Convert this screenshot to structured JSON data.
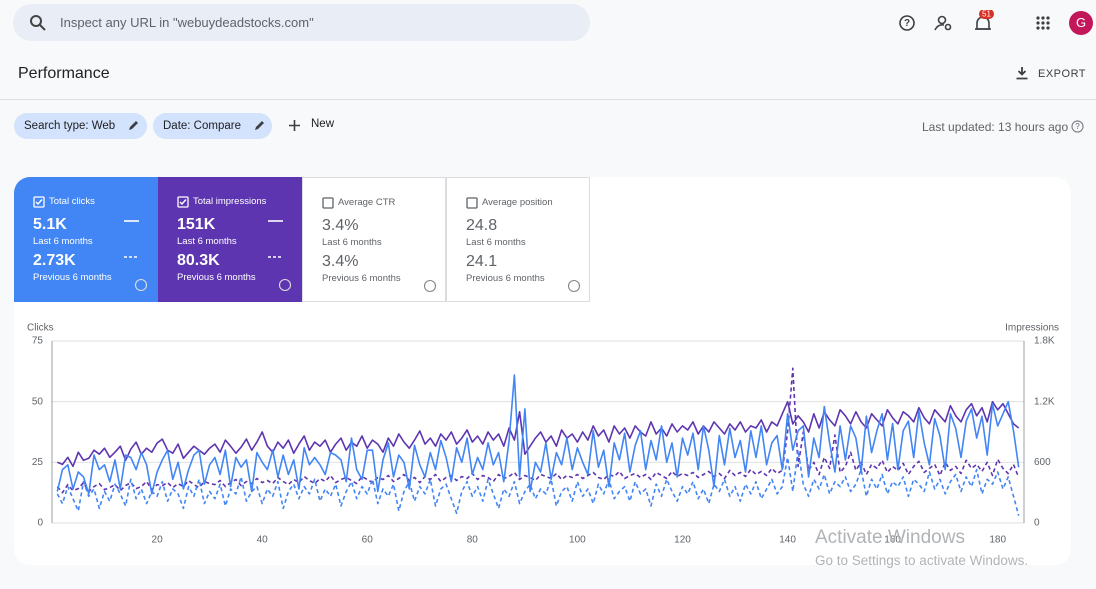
{
  "search": {
    "placeholder": "Inspect any URL in \"webuydeadstocks.com\""
  },
  "header": {
    "notification_count": 51,
    "avatar": "G"
  },
  "title": "Performance",
  "export": "EXPORT",
  "filters": [
    "Search type: Web",
    "Date: Compare",
    "New"
  ],
  "last_updated": "Last updated: 13 hours ago",
  "metrics": [
    {
      "label": "Total clicks",
      "current": "5.1K",
      "current_period": "Last 6 months",
      "previous": "2.73K",
      "previous_period": "Previous 6 months",
      "selected": true,
      "color": "#4285f4"
    },
    {
      "label": "Total impressions",
      "current": "151K",
      "current_period": "Last 6 months",
      "previous": "80.3K",
      "previous_period": "Previous 6 months",
      "selected": true,
      "color": "#5e35b1"
    },
    {
      "label": "Average CTR",
      "current": "3.4%",
      "current_period": "Last 6 months",
      "previous": "3.4%",
      "previous_period": "Previous 6 months",
      "selected": false,
      "color": "#00897b"
    },
    {
      "label": "Average position",
      "current": "24.8",
      "current_period": "Last 6 months",
      "previous": "24.1",
      "previous_period": "Previous 6 months",
      "selected": false,
      "color": "#e8710a"
    }
  ],
  "chart_data": {
    "type": "line",
    "ylabel": "Clicks",
    "y2label": "Impressions",
    "x": [
      1,
      2,
      3,
      4,
      5,
      6,
      7,
      8,
      9,
      10,
      11,
      12,
      13,
      14,
      15,
      16,
      17,
      18,
      19,
      20,
      21,
      22,
      23,
      24,
      25,
      26,
      27,
      28,
      29,
      30,
      31,
      32,
      33,
      34,
      35,
      36,
      37,
      38,
      39,
      40,
      41,
      42,
      43,
      44,
      45,
      46,
      47,
      48,
      49,
      50,
      51,
      52,
      53,
      54,
      55,
      56,
      57,
      58,
      59,
      60,
      61,
      62,
      63,
      64,
      65,
      66,
      67,
      68,
      69,
      70,
      71,
      72,
      73,
      74,
      75,
      76,
      77,
      78,
      79,
      80,
      81,
      82,
      83,
      84,
      85,
      86,
      87,
      88,
      89,
      90,
      91,
      92,
      93,
      94,
      95,
      96,
      97,
      98,
      99,
      100,
      101,
      102,
      103,
      104,
      105,
      106,
      107,
      108,
      109,
      110,
      111,
      112,
      113,
      114,
      115,
      116,
      117,
      118,
      119,
      120,
      121,
      122,
      123,
      124,
      125,
      126,
      127,
      128,
      129,
      130,
      131,
      132,
      133,
      134,
      135,
      136,
      137,
      138,
      139,
      140,
      141,
      142,
      143,
      144,
      145,
      146,
      147,
      148,
      149,
      150,
      151,
      152,
      153,
      154,
      155,
      156,
      157,
      158,
      159,
      160,
      161,
      162,
      163,
      164,
      165,
      166,
      167,
      168,
      169,
      170,
      171,
      172,
      173,
      174,
      175,
      176,
      177,
      178,
      179,
      180,
      181,
      182,
      183,
      184
    ],
    "xlim": [
      0,
      185
    ],
    "xticks": [
      20,
      40,
      60,
      80,
      100,
      120,
      140,
      160,
      180
    ],
    "ylim": [
      0,
      75
    ],
    "yticks": [
      0,
      25,
      50,
      75
    ],
    "y2lim": [
      0,
      1800
    ],
    "y2ticks": [
      0,
      600,
      {
        "value": 1200,
        "label": "1.2K"
      },
      {
        "value": 1800,
        "label": "1.8K"
      }
    ],
    "grid": true,
    "series": [
      {
        "color": "#5e35b1",
        "dashed": true,
        "axis": "y2",
        "values": [
          360,
          300,
          380,
          320,
          340,
          400,
          310,
          360,
          390,
          330,
          350,
          380,
          320,
          370,
          400,
          340,
          360,
          410,
          330,
          380,
          370,
          400,
          350,
          390,
          360,
          420,
          380,
          350,
          410,
          390,
          380,
          420,
          360,
          400,
          430,
          370,
          410,
          390,
          440,
          400,
          420,
          390,
          450,
          410,
          380,
          430,
          400,
          460,
          420,
          390,
          440,
          410,
          470,
          400,
          430,
          450,
          420,
          390,
          460,
          430,
          400,
          450,
          430,
          470,
          410,
          440,
          480,
          420,
          450,
          400,
          460,
          430,
          480,
          410,
          450,
          470,
          420,
          460,
          440,
          490,
          430,
          470,
          450,
          410,
          480,
          440,
          460,
          500,
          430,
          470,
          450,
          420,
          480,
          460,
          440,
          490,
          430,
          470,
          450,
          480,
          440,
          470,
          500,
          450,
          430,
          480,
          460,
          510,
          440,
          470,
          490,
          450,
          480,
          430,
          500,
          470,
          440,
          510,
          460,
          490,
          470,
          500,
          450,
          480,
          510,
          460,
          490,
          440,
          520,
          470,
          500,
          460,
          530,
          480,
          510,
          470,
          540,
          490,
          520,
          900,
          1530,
          560,
          900,
          520,
          600,
          480,
          650,
          540,
          870,
          500,
          560,
          700,
          520,
          600,
          480,
          580,
          540,
          620,
          500,
          560,
          520,
          590,
          480,
          560,
          610,
          500,
          540,
          580,
          470,
          600,
          520,
          560,
          490,
          620,
          540,
          580,
          510,
          600,
          470,
          630,
          540,
          490,
          580,
          450
        ]
      },
      {
        "color": "#4285f4",
        "dashed": true,
        "axis": "y",
        "values": [
          12,
          8,
          15,
          10,
          5,
          17,
          11,
          14,
          6,
          13,
          9,
          16,
          12,
          7,
          18,
          10,
          14,
          8,
          13,
          11,
          17,
          9,
          14,
          12,
          6,
          15,
          11,
          18,
          8,
          13,
          10,
          16,
          7,
          14,
          12,
          19,
          9,
          13,
          15,
          8,
          14,
          11,
          17,
          6,
          13,
          16,
          10,
          15,
          12,
          18,
          9,
          14,
          11,
          16,
          7,
          13,
          17,
          10,
          15,
          12,
          18,
          8,
          14,
          11,
          16,
          5,
          13,
          17,
          9,
          15,
          12,
          18,
          7,
          14,
          16,
          10,
          4,
          13,
          17,
          11,
          15,
          9,
          18,
          12,
          6,
          14,
          11,
          17,
          8,
          13,
          16,
          10,
          14,
          12,
          18,
          7,
          13,
          15,
          9,
          17,
          11,
          14,
          8,
          16,
          12,
          18,
          10,
          13,
          15,
          9,
          17,
          12,
          14,
          7,
          16,
          11,
          18,
          13,
          9,
          15,
          12,
          17,
          10,
          14,
          8,
          16,
          13,
          18,
          11,
          15,
          9,
          16,
          12,
          17,
          10,
          14,
          18,
          12,
          15,
          27,
          13,
          30,
          16,
          11,
          18,
          14,
          20,
          12,
          17,
          15,
          19,
          13,
          16,
          22,
          11,
          18,
          14,
          20,
          12,
          17,
          15,
          19,
          11,
          18,
          16,
          13,
          21,
          14,
          18,
          12,
          17,
          20,
          13,
          19,
          15,
          22,
          12,
          18,
          16,
          21,
          14,
          19,
          11,
          3
        ]
      },
      {
        "color": "#5e35b1",
        "dashed": false,
        "axis": "y2",
        "values": [
          600,
          580,
          650,
          560,
          700,
          620,
          640,
          720,
          680,
          740,
          650,
          700,
          760,
          620,
          730,
          800,
          680,
          740,
          700,
          790,
          830,
          720,
          690,
          780,
          640,
          700,
          760,
          720,
          680,
          740,
          780,
          700,
          820,
          760,
          690,
          750,
          830,
          720,
          800,
          900,
          760,
          700,
          800,
          740,
          820,
          690,
          780,
          860,
          720,
          800,
          760,
          820,
          700,
          780,
          840,
          720,
          800,
          760,
          860,
          740,
          820,
          780,
          700,
          840,
          760,
          880,
          800,
          740,
          820,
          910,
          780,
          840,
          760,
          880,
          820,
          900,
          780,
          840,
          920,
          800,
          860,
          780,
          900,
          820,
          880,
          760,
          940,
          820,
          1100,
          680,
          760,
          840,
          900,
          800,
          860,
          760,
          920,
          840,
          880,
          800,
          900,
          820,
          960,
          860,
          920,
          800,
          960,
          880,
          940,
          840,
          960,
          900,
          860,
          1000,
          880,
          940,
          860,
          980,
          900,
          960,
          920,
          1000,
          880,
          960,
          900,
          1000,
          940,
          880,
          980,
          920,
          1000,
          900,
          960,
          940,
          1020,
          900,
          1000,
          960,
          1080,
          1200,
          980,
          1060,
          1000,
          900,
          1080,
          940,
          1100,
          1020,
          960,
          1120,
          1060,
          980,
          1100,
          1000,
          940,
          1080,
          1020,
          960,
          1120,
          1040,
          980,
          1100,
          1060,
          1000,
          1140,
          1040,
          980,
          1120,
          1060,
          1000,
          1160,
          1060,
          1000,
          1120,
          1180,
          1060,
          1140,
          1000,
          1200,
          1120,
          1180,
          1080,
          980,
          940
        ]
      },
      {
        "color": "#4285f4",
        "dashed": false,
        "axis": "y",
        "values": [
          13,
          22,
          24,
          14,
          21,
          19,
          12,
          28,
          22,
          24,
          17,
          26,
          14,
          28,
          27,
          22,
          29,
          24,
          12,
          21,
          26,
          30,
          18,
          25,
          14,
          22,
          28,
          30,
          16,
          24,
          27,
          20,
          30,
          15,
          27,
          23,
          26,
          13,
          29,
          25,
          22,
          30,
          19,
          28,
          20,
          26,
          14,
          31,
          24,
          27,
          24,
          20,
          29,
          28,
          26,
          17,
          35,
          22,
          18,
          30,
          30,
          13,
          26,
          33,
          19,
          28,
          25,
          14,
          32,
          24,
          19,
          29,
          22,
          34,
          27,
          17,
          31,
          25,
          35,
          20,
          27,
          22,
          33,
          24,
          29,
          17,
          34,
          61,
          19,
          47,
          13,
          25,
          21,
          33,
          18,
          29,
          24,
          35,
          22,
          31,
          25,
          20,
          38,
          23,
          30,
          15,
          33,
          26,
          37,
          21,
          32,
          38,
          22,
          34,
          26,
          40,
          25,
          33,
          19,
          35,
          28,
          37,
          22,
          40,
          30,
          15,
          36,
          24,
          39,
          27,
          34,
          21,
          38,
          27,
          40,
          24,
          33,
          36,
          22,
          45,
          30,
          38,
          40,
          19,
          35,
          27,
          48,
          33,
          21,
          40,
          26,
          40,
          35,
          21,
          44,
          29,
          38,
          45,
          26,
          41,
          22,
          38,
          42,
          27,
          46,
          33,
          24,
          43,
          36,
          22,
          45,
          39,
          27,
          42,
          47,
          35,
          44,
          28,
          49,
          40,
          45,
          50,
          38,
          23
        ]
      }
    ]
  },
  "watermark": {
    "title": "Activate Windows",
    "subtitle": "Go to Settings to activate Windows."
  }
}
